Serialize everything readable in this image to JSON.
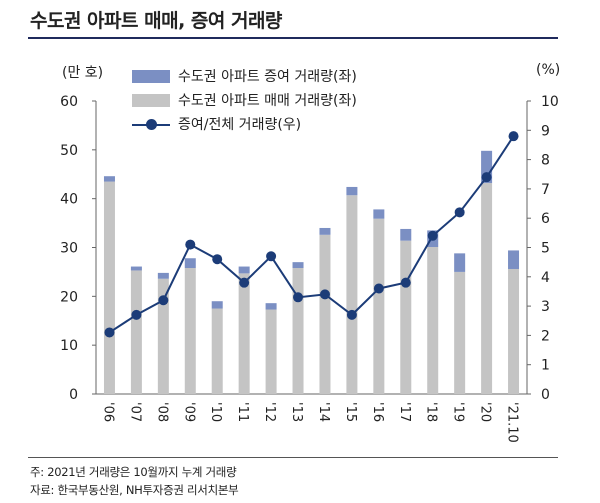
{
  "title": "수도권 아파트 매매, 증여 거래량",
  "left_unit": "(만 호)",
  "right_unit": "(%)",
  "colors": {
    "gift_bar": "#7b8fc3",
    "sale_bar": "#c4c4c4",
    "ratio_line": "#1c3c78"
  },
  "chart_data": {
    "type": "bar",
    "categories": [
      "'06",
      "'07",
      "'08",
      "'09",
      "'10",
      "'11",
      "'12",
      "'13",
      "'14",
      "'15",
      "'16",
      "'17",
      "'18",
      "'19",
      "'20",
      "'21.10"
    ],
    "series": [
      {
        "name": "수도권 아파트 매매 거래량(좌)",
        "kind": "bar-stack-bottom",
        "axis": "left",
        "values": [
          43.5,
          25.3,
          23.6,
          25.8,
          17.5,
          24.7,
          17.3,
          25.8,
          32.6,
          40.7,
          35.9,
          31.4,
          30.1,
          25.0,
          43.2,
          25.6
        ]
      },
      {
        "name": "수도권 아파트 증여 거래량(좌)",
        "kind": "bar-stack-top",
        "axis": "left",
        "values": [
          1.1,
          0.8,
          1.2,
          2.0,
          1.5,
          1.4,
          1.3,
          1.2,
          1.4,
          1.7,
          1.9,
          2.4,
          3.4,
          3.8,
          6.6,
          3.8
        ]
      },
      {
        "name": "증여/전체 거래량(우)",
        "kind": "line",
        "axis": "right",
        "values": [
          2.1,
          2.7,
          3.2,
          5.1,
          4.6,
          3.8,
          4.7,
          3.3,
          3.4,
          2.7,
          3.6,
          3.8,
          5.4,
          6.2,
          7.4,
          8.8
        ]
      }
    ],
    "ylim_left": [
      0,
      60
    ],
    "yticks_left": [
      0,
      10,
      20,
      30,
      40,
      50,
      60
    ],
    "ylim_right": [
      0,
      10
    ],
    "yticks_right": [
      0,
      1,
      2,
      3,
      4,
      5,
      6,
      7,
      8,
      9,
      10
    ],
    "legend": [
      "수도권 아파트 증여 거래량(좌)",
      "수도권 아파트 매매 거래량(좌)",
      "증여/전체 거래량(우)"
    ],
    "legend_position": "top-left",
    "grid": false
  },
  "notes": [
    "주: 2021년 거래량은 10월까지 누계 거래량",
    "자료: 한국부동산원, NH투자증권 리서치본부"
  ]
}
